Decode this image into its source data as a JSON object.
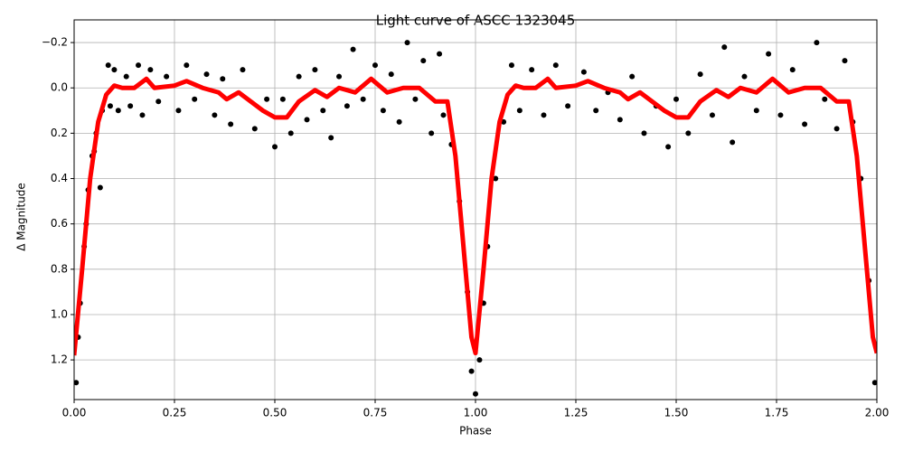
{
  "chart_data": {
    "type": "scatter",
    "title": "Light curve of ASCC 1323045",
    "x_label": "Phase",
    "y_label": "Δ Magnitude",
    "xlim": [
      0,
      2
    ],
    "ylim": [
      1.375,
      -0.3
    ],
    "grid": true,
    "xticks": [
      {
        "value": 0,
        "label": "0.00"
      },
      {
        "value": 0.25,
        "label": "0.25"
      },
      {
        "value": 0.5,
        "label": "0.50"
      },
      {
        "value": 0.75,
        "label": "0.75"
      },
      {
        "value": 1,
        "label": "1.00"
      },
      {
        "value": 1.25,
        "label": "1.25"
      },
      {
        "value": 1.5,
        "label": "1.50"
      },
      {
        "value": 1.75,
        "label": "1.75"
      },
      {
        "value": 2,
        "label": "2.00"
      }
    ],
    "yticks": [
      {
        "value": -0.2,
        "label": "−0.2"
      },
      {
        "value": 0,
        "label": "0.0"
      },
      {
        "value": 0.2,
        "label": "0.2"
      },
      {
        "value": 0.4,
        "label": "0.4"
      },
      {
        "value": 0.6,
        "label": "0.6"
      },
      {
        "value": 0.8,
        "label": "0.8"
      },
      {
        "value": 1,
        "label": "1.0"
      },
      {
        "value": 1.2,
        "label": "1.2"
      }
    ],
    "series": [
      {
        "type": "scatter",
        "color": "#000000",
        "x": [
          0.005,
          0.01,
          0.015,
          0.025,
          0.03,
          0.035,
          0.045,
          0.05,
          0.055,
          0.065,
          0.07,
          0.085,
          0.09,
          0.1,
          0.11,
          0.13,
          0.14,
          0.16,
          0.17,
          0.19,
          0.21,
          0.23,
          0.26,
          0.28,
          0.3,
          0.33,
          0.35,
          0.37,
          0.39,
          0.42,
          0.45,
          0.48,
          0.5,
          0.52,
          0.54,
          0.56,
          0.58,
          0.6,
          0.62,
          0.64,
          0.66,
          0.68,
          0.695,
          0.72,
          0.75,
          0.77,
          0.79,
          0.81,
          0.83,
          0.85,
          0.87,
          0.89,
          0.91,
          0.92,
          0.94,
          0.96,
          0.98,
          0.99,
          1.0,
          1.01,
          1.02,
          1.03,
          1.05,
          1.07,
          1.09,
          1.11,
          1.14,
          1.17,
          1.2,
          1.23,
          1.27,
          1.3,
          1.33,
          1.36,
          1.39,
          1.42,
          1.45,
          1.48,
          1.5,
          1.53,
          1.56,
          1.59,
          1.62,
          1.64,
          1.67,
          1.7,
          1.73,
          1.76,
          1.79,
          1.82,
          1.85,
          1.87,
          1.9,
          1.92,
          1.94,
          1.96,
          1.98,
          1.995
        ],
        "values": [
          1.3,
          1.1,
          0.95,
          0.7,
          0.6,
          0.45,
          0.3,
          0.28,
          0.2,
          0.44,
          0.1,
          -0.1,
          0.08,
          -0.08,
          0.1,
          -0.05,
          0.08,
          -0.1,
          0.12,
          -0.08,
          0.06,
          -0.05,
          0.1,
          -0.1,
          0.05,
          -0.06,
          0.12,
          -0.04,
          0.16,
          -0.08,
          0.18,
          0.05,
          0.26,
          0.05,
          0.2,
          -0.05,
          0.14,
          -0.08,
          0.1,
          0.22,
          -0.05,
          0.08,
          -0.17,
          0.05,
          -0.1,
          0.1,
          -0.06,
          0.15,
          -0.2,
          0.05,
          -0.12,
          0.2,
          -0.15,
          0.12,
          0.25,
          0.5,
          0.9,
          1.25,
          1.35,
          1.2,
          0.95,
          0.7,
          0.4,
          0.15,
          -0.1,
          0.1,
          -0.08,
          0.12,
          -0.1,
          0.08,
          -0.07,
          0.1,
          0.02,
          0.14,
          -0.05,
          0.2,
          0.08,
          0.26,
          0.05,
          0.2,
          -0.06,
          0.12,
          -0.18,
          0.24,
          -0.05,
          0.1,
          -0.15,
          0.12,
          -0.08,
          0.16,
          -0.2,
          0.05,
          0.18,
          -0.12,
          0.15,
          0.4,
          0.85,
          1.3
        ]
      },
      {
        "type": "line",
        "color": "#ff0000",
        "x": [
          0,
          0.02,
          0.04,
          0.06,
          0.08,
          0.1,
          0.12,
          0.15,
          0.18,
          0.2,
          0.25,
          0.28,
          0.32,
          0.36,
          0.38,
          0.41,
          0.44,
          0.47,
          0.5,
          0.53,
          0.56,
          0.6,
          0.63,
          0.66,
          0.7,
          0.74,
          0.78,
          0.82,
          0.86,
          0.9,
          0.93,
          0.95,
          0.97,
          0.99,
          1.0,
          1.02,
          1.04,
          1.06,
          1.08,
          1.1,
          1.12,
          1.15,
          1.18,
          1.2,
          1.25,
          1.28,
          1.32,
          1.36,
          1.38,
          1.41,
          1.44,
          1.47,
          1.5,
          1.53,
          1.56,
          1.6,
          1.63,
          1.66,
          1.7,
          1.74,
          1.78,
          1.82,
          1.86,
          1.9,
          1.93,
          1.95,
          1.97,
          1.99,
          2.0
        ],
        "values": [
          1.18,
          0.8,
          0.4,
          0.15,
          0.03,
          -0.01,
          0,
          0,
          -0.04,
          0,
          -0.01,
          -0.03,
          0,
          0.02,
          0.05,
          0.02,
          0.06,
          0.1,
          0.13,
          0.13,
          0.06,
          0.01,
          0.04,
          0,
          0.02,
          -0.04,
          0.02,
          0,
          0,
          0.06,
          0.06,
          0.3,
          0.7,
          1.1,
          1.17,
          0.8,
          0.4,
          0.15,
          0.03,
          -0.01,
          0,
          0,
          -0.04,
          0,
          -0.01,
          -0.03,
          0,
          0.02,
          0.05,
          0.02,
          0.06,
          0.1,
          0.13,
          0.13,
          0.06,
          0.01,
          0.04,
          0,
          0.02,
          -0.04,
          0.02,
          0,
          0,
          0.06,
          0.06,
          0.3,
          0.7,
          1.1,
          1.17
        ]
      }
    ]
  }
}
